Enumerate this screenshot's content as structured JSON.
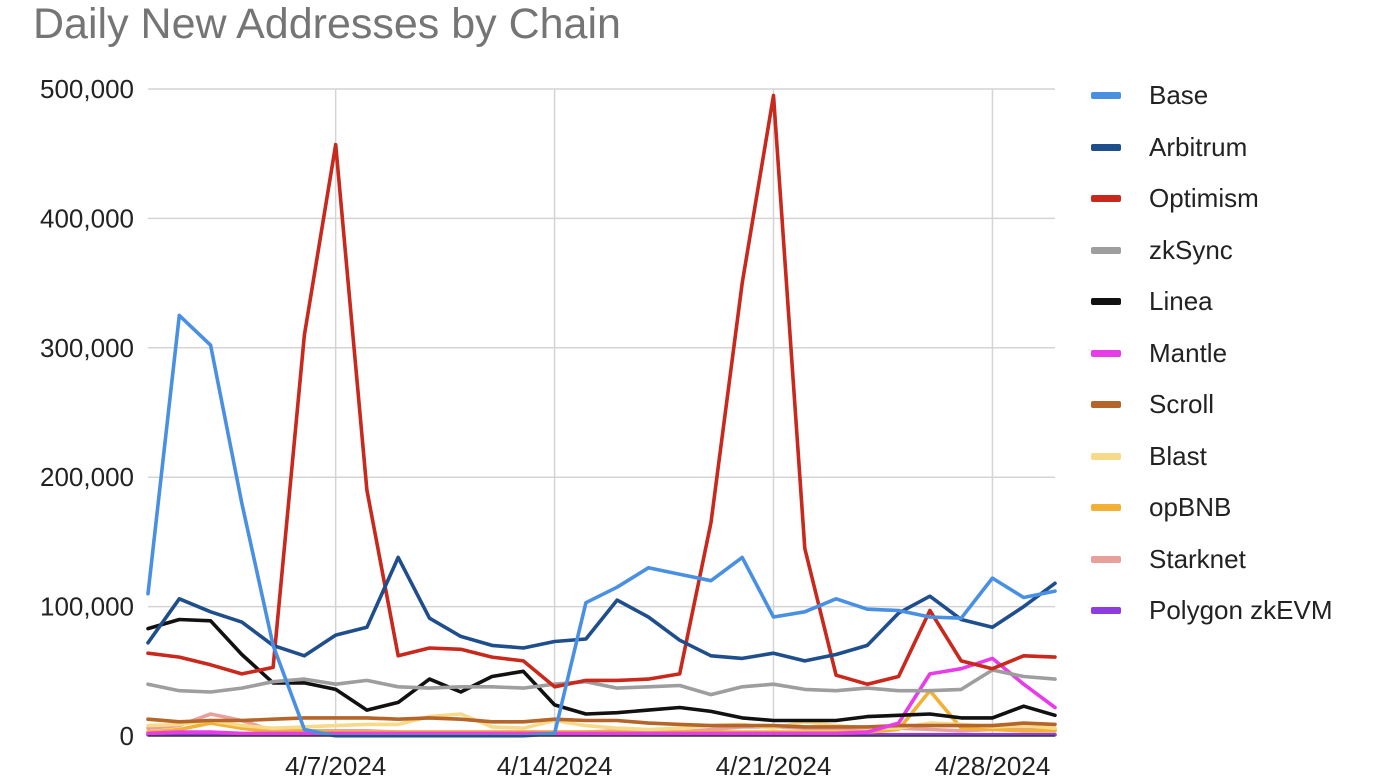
{
  "chart_data": {
    "type": "line",
    "title": "Daily New Addresses by Chain",
    "xlabel": "",
    "ylabel": "",
    "ylim": [
      0,
      500000
    ],
    "y_ticks": [
      0,
      100000,
      200000,
      300000,
      400000,
      500000
    ],
    "y_tick_labels": [
      "0",
      "100,000",
      "200,000",
      "300,000",
      "400,000",
      "500,000"
    ],
    "x": [
      "2024-04-01",
      "2024-04-02",
      "2024-04-03",
      "2024-04-04",
      "2024-04-05",
      "2024-04-06",
      "2024-04-07",
      "2024-04-08",
      "2024-04-09",
      "2024-04-10",
      "2024-04-11",
      "2024-04-12",
      "2024-04-13",
      "2024-04-14",
      "2024-04-15",
      "2024-04-16",
      "2024-04-17",
      "2024-04-18",
      "2024-04-19",
      "2024-04-20",
      "2024-04-21",
      "2024-04-22",
      "2024-04-23",
      "2024-04-24",
      "2024-04-25",
      "2024-04-26",
      "2024-04-27",
      "2024-04-28",
      "2024-04-29",
      "2024-04-30"
    ],
    "x_ticks": [
      "2024-04-07",
      "2024-04-14",
      "2024-04-21",
      "2024-04-28"
    ],
    "x_tick_labels": [
      "4/7/2024",
      "4/14/2024",
      "4/21/2024",
      "4/28/2024"
    ],
    "grid": true,
    "legend_position": "right",
    "series": [
      {
        "name": "Base",
        "color": "#4a90e2",
        "values": [
          110000,
          325000,
          302000,
          180000,
          70000,
          5000,
          0,
          0,
          0,
          0,
          0,
          0,
          0,
          2000,
          103000,
          115000,
          130000,
          125000,
          120000,
          138000,
          92000,
          96000,
          106000,
          98000,
          97000,
          92000,
          91000,
          122000,
          107000,
          112000
        ]
      },
      {
        "name": "Arbitrum",
        "color": "#1f4e8c",
        "values": [
          72000,
          106000,
          96000,
          88000,
          70000,
          62000,
          78000,
          84000,
          138000,
          91000,
          77000,
          70000,
          68000,
          73000,
          75000,
          105000,
          92000,
          74000,
          62000,
          60000,
          64000,
          58000,
          63000,
          70000,
          95000,
          108000,
          90000,
          84000,
          100000,
          118000
        ]
      },
      {
        "name": "Optimism",
        "color": "#c9281c",
        "values": [
          64000,
          61000,
          55000,
          48000,
          53000,
          310000,
          457000,
          190000,
          62000,
          68000,
          67000,
          61000,
          58000,
          38000,
          43000,
          43000,
          44000,
          48000,
          165000,
          350000,
          495000,
          145000,
          47000,
          40000,
          46000,
          97000,
          58000,
          52000,
          62000,
          61000
        ]
      },
      {
        "name": "zkSync",
        "color": "#9e9e9e",
        "values": [
          40000,
          35000,
          34000,
          37000,
          42000,
          44000,
          40000,
          43000,
          38000,
          37000,
          38000,
          38000,
          37000,
          40000,
          42000,
          37000,
          38000,
          39000,
          32000,
          38000,
          40000,
          36000,
          35000,
          37000,
          35000,
          35000,
          36000,
          51000,
          46000,
          44000
        ]
      },
      {
        "name": "Linea",
        "color": "#111111",
        "values": [
          83000,
          90000,
          89000,
          63000,
          41000,
          41000,
          36000,
          20000,
          26000,
          44000,
          34000,
          46000,
          50000,
          24000,
          17000,
          18000,
          20000,
          22000,
          19000,
          14000,
          12000,
          12000,
          12000,
          15000,
          16000,
          17000,
          14000,
          14000,
          23000,
          16000
        ]
      },
      {
        "name": "Mantle",
        "color": "#e83ce8",
        "values": [
          2000,
          3000,
          3000,
          2000,
          2000,
          2000,
          2000,
          2000,
          2000,
          2000,
          2000,
          2000,
          2000,
          2000,
          2000,
          2000,
          2000,
          2000,
          2000,
          2000,
          2000,
          2000,
          2000,
          3000,
          10000,
          48000,
          52000,
          60000,
          40000,
          22000
        ]
      },
      {
        "name": "Scroll",
        "color": "#b5652a",
        "values": [
          13000,
          11000,
          12000,
          12000,
          13000,
          14000,
          14000,
          14000,
          13000,
          14000,
          13000,
          11000,
          11000,
          13000,
          12000,
          12000,
          10000,
          9000,
          8000,
          8000,
          8000,
          7000,
          7000,
          7000,
          8000,
          8000,
          8000,
          8000,
          10000,
          9000
        ]
      },
      {
        "name": "Blast",
        "color": "#f7d98a",
        "values": [
          8000,
          9000,
          12000,
          8000,
          6000,
          7000,
          8000,
          9000,
          9000,
          15000,
          17000,
          7000,
          6000,
          12000,
          8000,
          6000,
          5000,
          6000,
          8000,
          9000,
          6000,
          11000,
          8000,
          6000,
          6000,
          10000,
          9000,
          7000,
          8000,
          6000
        ]
      },
      {
        "name": "opBNB",
        "color": "#f2b134",
        "values": [
          3000,
          5000,
          10000,
          6000,
          3000,
          4000,
          3000,
          3000,
          3000,
          3000,
          3000,
          3000,
          3000,
          3000,
          3000,
          3000,
          3000,
          3000,
          3000,
          3000,
          3000,
          3000,
          3000,
          3000,
          5000,
          35000,
          6000,
          5000,
          4000,
          4000
        ]
      },
      {
        "name": "Starknet",
        "color": "#e8a09a",
        "values": [
          6000,
          8000,
          17000,
          12000,
          4000,
          4000,
          4000,
          4000,
          3000,
          3000,
          3000,
          3000,
          3000,
          3000,
          3000,
          4000,
          4000,
          3000,
          5000,
          7000,
          7000,
          6000,
          6000,
          5000,
          6000,
          5000,
          4000,
          5000,
          5000,
          5000
        ]
      },
      {
        "name": "Polygon zkEVM",
        "color": "#8e3ce0",
        "values": [
          1000,
          1000,
          1000,
          1000,
          1000,
          1000,
          1000,
          1000,
          1000,
          1000,
          1000,
          1000,
          1000,
          1000,
          1000,
          1000,
          1000,
          1000,
          1000,
          1000,
          1000,
          1000,
          1000,
          1000,
          1000,
          1000,
          1000,
          1000,
          1000,
          1000
        ]
      }
    ]
  }
}
